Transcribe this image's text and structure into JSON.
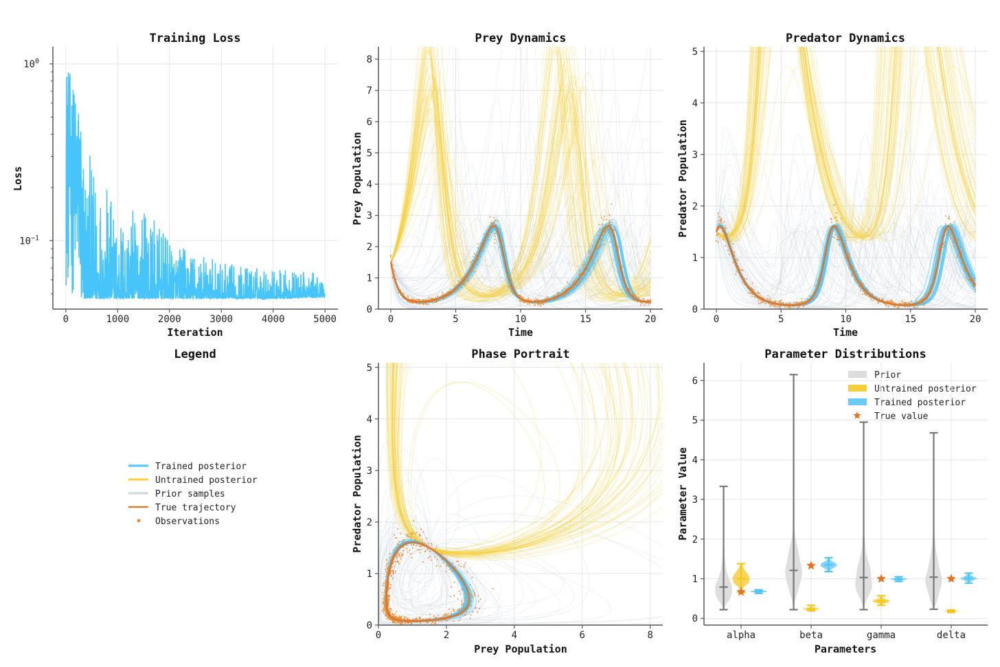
{
  "colors": {
    "trained": "#4fc3f7",
    "untrained": "#f7cd3a",
    "prior": "#c9d5df",
    "true": "#e8711a",
    "observations": "#f08a2c",
    "prior_violin": "#d6d6d6",
    "prior_whisker": "#777777",
    "untrained_violin": "#f5c518",
    "trained_violin": "#4fc3f7",
    "grid": "#e6e6e6",
    "axis": "#555555"
  },
  "legend_panel": {
    "title": "Legend",
    "entries": [
      {
        "label": "Trained posterior",
        "kind": "line",
        "color": "#5cc8f5"
      },
      {
        "label": "Untrained posterior",
        "kind": "line",
        "color": "#f7d44c"
      },
      {
        "label": "Prior samples",
        "kind": "line",
        "color": "#d0d9e3"
      },
      {
        "label": "True trajectory",
        "kind": "line",
        "color": "#e8711a"
      },
      {
        "label": "Observations",
        "kind": "dot",
        "color": "#f08a2c"
      }
    ]
  },
  "chart_data": [
    {
      "id": "loss",
      "type": "line",
      "title": "Training Loss",
      "xlabel": "Iteration",
      "ylabel": "Loss",
      "yscale": "log",
      "xlim": [
        -250,
        5250
      ],
      "ylim": [
        0.041,
        1.25
      ],
      "xticks": [
        0,
        1000,
        2000,
        3000,
        4000,
        5000
      ],
      "yticks": [
        {
          "value": 1,
          "label": "10",
          "exp": "0"
        },
        {
          "value": 0.1,
          "label": "10",
          "exp": "−1"
        }
      ],
      "grid": true,
      "series_envelope": {
        "iteration": [
          0,
          100,
          250,
          500,
          750,
          1000,
          1500,
          2000,
          3000,
          4000,
          5000
        ],
        "max": [
          1.1,
          0.85,
          0.6,
          0.27,
          0.22,
          0.14,
          0.16,
          0.1,
          0.075,
          0.07,
          0.065
        ],
        "min": [
          0.05,
          0.048,
          0.047,
          0.047,
          0.047,
          0.047,
          0.047,
          0.047,
          0.047,
          0.047,
          0.048
        ]
      }
    },
    {
      "id": "prey",
      "type": "line",
      "title": "Prey Dynamics",
      "xlabel": "Time",
      "ylabel": "Prey Population",
      "xlim": [
        -0.95,
        20.95
      ],
      "ylim": [
        0,
        8.4
      ],
      "xticks": [
        0,
        5,
        10,
        15,
        20
      ],
      "yticks": [
        0,
        1,
        2,
        3,
        4,
        5,
        6,
        7,
        8
      ],
      "grid": true
    },
    {
      "id": "predator",
      "type": "line",
      "title": "Predator Dynamics",
      "xlabel": "Time",
      "ylabel": "Predator Population",
      "xlim": [
        -0.95,
        20.95
      ],
      "ylim": [
        0,
        5.09
      ],
      "xticks": [
        0,
        5,
        10,
        15,
        20
      ],
      "yticks": [
        0,
        1,
        2,
        3,
        4,
        5
      ],
      "grid": true
    },
    {
      "id": "phase",
      "type": "line",
      "title": "Phase Portrait",
      "xlabel": "Prey Population",
      "ylabel": "Predator Population",
      "xlim": [
        0,
        8.37
      ],
      "ylim": [
        0,
        5.09
      ],
      "xticks": [
        0,
        2,
        4,
        6,
        8
      ],
      "yticks": [
        0,
        1,
        2,
        3,
        4,
        5
      ],
      "grid": true
    },
    {
      "id": "params",
      "type": "violin",
      "title": "Parameter Distributions",
      "xlabel": "Parameters",
      "ylabel": "Parameter Value",
      "categories": [
        "alpha",
        "beta",
        "gamma",
        "delta"
      ],
      "ylim": [
        -0.17,
        6.45
      ],
      "yticks": [
        0,
        1,
        2,
        3,
        4,
        5,
        6
      ],
      "grid": true,
      "legend": {
        "placement": "top-right",
        "entries": [
          "Prior",
          "Untrained posterior",
          "Trained posterior",
          "True value"
        ]
      },
      "true_values": [
        0.67,
        1.33,
        1.0,
        1.0
      ],
      "initial_state": {
        "prey": 1.5,
        "predator": 1.5
      },
      "prior": [
        {
          "min": 0.22,
          "max": 3.33,
          "median": 0.79
        },
        {
          "min": 0.22,
          "max": 6.15,
          "median": 1.21
        },
        {
          "min": 0.22,
          "max": 4.95,
          "median": 1.03
        },
        {
          "min": 0.23,
          "max": 4.68,
          "median": 1.04
        }
      ],
      "untrained_posterior": [
        {
          "min": 0.66,
          "max": 1.38,
          "median": 1.0
        },
        {
          "min": 0.19,
          "max": 0.33,
          "median": 0.24
        },
        {
          "min": 0.33,
          "max": 0.57,
          "median": 0.44
        },
        {
          "min": 0.15,
          "max": 0.21,
          "median": 0.18
        }
      ],
      "trained_posterior": [
        {
          "min": 0.63,
          "max": 0.72,
          "median": 0.68
        },
        {
          "min": 1.18,
          "max": 1.53,
          "median": 1.35
        },
        {
          "min": 0.93,
          "max": 1.05,
          "median": 0.99
        },
        {
          "min": 0.89,
          "max": 1.14,
          "median": 1.01
        }
      ]
    }
  ]
}
